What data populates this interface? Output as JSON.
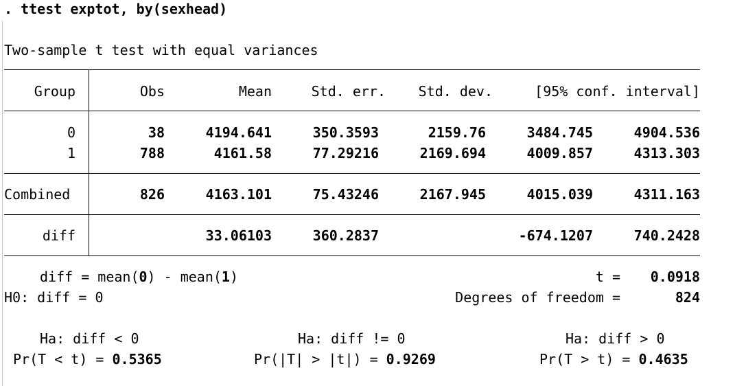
{
  "command": ". ttest exptot, by(sexhead)",
  "title": "Two-sample t test with equal variances",
  "table": {
    "headers": [
      "Group",
      "Obs",
      "Mean",
      "Std. err.",
      "Std. dev.",
      "[95% conf. interval]"
    ],
    "rows": [
      {
        "group": "0",
        "obs": "38",
        "mean": "4194.641",
        "se": "350.3593",
        "sd": "2159.76",
        "ci_lo": "3484.745",
        "ci_hi": "4904.536"
      },
      {
        "group": "1",
        "obs": "788",
        "mean": "4161.58",
        "se": "77.29216",
        "sd": "2169.694",
        "ci_lo": "4009.857",
        "ci_hi": "4313.303"
      }
    ],
    "combined": {
      "group": "Combined",
      "obs": "826",
      "mean": "4163.101",
      "se": "75.43246",
      "sd": "2167.945",
      "ci_lo": "4015.039",
      "ci_hi": "4311.163"
    },
    "diff": {
      "group": "diff",
      "mean": "33.06103",
      "se": "360.2837",
      "ci_lo": "-674.1207",
      "ci_hi": "740.2428"
    }
  },
  "stats": {
    "diff_label": "diff = mean(",
    "diff_g0": "0",
    "diff_mid": ") - mean(",
    "diff_g1": "1",
    "diff_end": ")",
    "t_label": "t =",
    "t_value": "0.0918",
    "h0": "H0: diff = 0",
    "df_label": "Degrees of freedom =",
    "df_value": "824"
  },
  "alternatives": [
    {
      "ha": "Ha: diff < 0",
      "pr_label": "Pr(T < t) = ",
      "pr_value": "0.5365"
    },
    {
      "ha": "Ha: diff != 0",
      "pr_label": "Pr(|T| > |t|) = ",
      "pr_value": "0.9269"
    },
    {
      "ha": "Ha: diff > 0",
      "pr_label": "Pr(T > t) = ",
      "pr_value": "0.4635"
    }
  ]
}
